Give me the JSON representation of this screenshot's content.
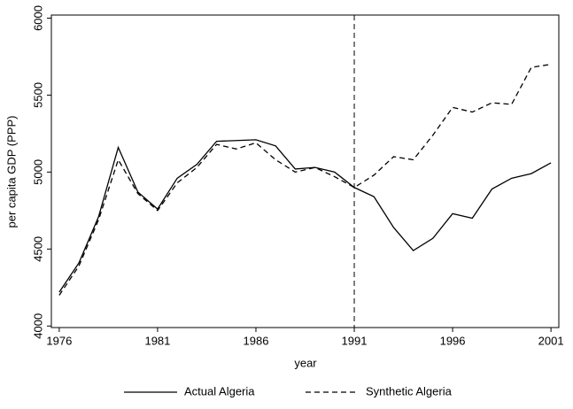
{
  "chart_data": {
    "type": "line",
    "x_label": "year",
    "y_label": "per capita GDP (PPP)",
    "x": [
      1976,
      1977,
      1978,
      1979,
      1980,
      1981,
      1982,
      1983,
      1984,
      1985,
      1986,
      1987,
      1988,
      1989,
      1990,
      1991,
      1992,
      1993,
      1994,
      1995,
      1996,
      1997,
      1998,
      1999,
      2000,
      2001
    ],
    "series": [
      {
        "name": "Actual Algeria",
        "color": "#000000",
        "dash": false,
        "values": [
          4220,
          4410,
          4710,
          5160,
          4870,
          4760,
          4960,
          5050,
          5200,
          5205,
          5210,
          5170,
          5020,
          5030,
          5000,
          4900,
          4840,
          4640,
          4490,
          4570,
          4730,
          4700,
          4890,
          4960,
          4990,
          5060
        ]
      },
      {
        "name": "Synthetic Algeria",
        "color": "#000000",
        "dash": true,
        "values": [
          4200,
          4390,
          4690,
          5080,
          4860,
          4750,
          4930,
          5030,
          5180,
          5150,
          5190,
          5080,
          5000,
          5030,
          4970,
          4900,
          4980,
          5100,
          5080,
          5240,
          5420,
          5390,
          5450,
          5440,
          5680,
          5700
        ]
      }
    ],
    "vline": 1991,
    "xlim": [
      1975.6,
      2001.4
    ],
    "xticks": [
      1976,
      1981,
      1986,
      1991,
      1996,
      2001
    ],
    "ylim": [
      3990,
      6020
    ],
    "yticks": [
      4000,
      4500,
      5000,
      5500,
      6000
    ],
    "grid": false,
    "legend": "bottom"
  }
}
